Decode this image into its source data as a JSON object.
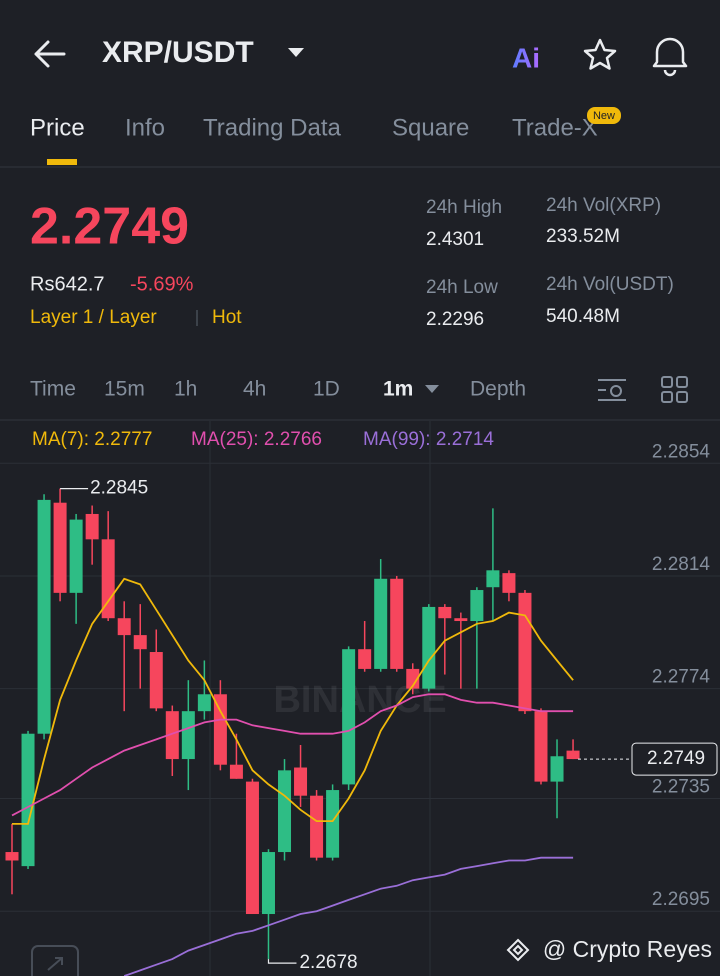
{
  "header": {
    "title": "XRP/USDT"
  },
  "tabs": [
    "Price",
    "Info",
    "Trading Data",
    "Square",
    "Trade-X"
  ],
  "tab_badge": "New",
  "ticker": {
    "price": "2.2749",
    "fiat": "Rs642.7",
    "change": "-5.69%",
    "tags": [
      "Layer 1 / Layer",
      "Hot"
    ]
  },
  "stats": [
    {
      "label": "24h High",
      "value": "2.4301"
    },
    {
      "label": "24h Vol(XRP)",
      "value": "233.52M"
    },
    {
      "label": "24h Low",
      "value": "2.2296"
    },
    {
      "label": "24h Vol(USDT)",
      "value": "540.48M"
    }
  ],
  "intervals": [
    "Time",
    "15m",
    "1h",
    "4h",
    "1D",
    "1m",
    "Depth"
  ],
  "chart": {
    "type": "candlestick",
    "watermark": "BINANCE",
    "ylim": [
      2.2672,
      2.2869
    ],
    "yticks": [
      2.2854,
      2.2814,
      2.2774,
      2.2735,
      2.2695
    ],
    "up_color": "#2ebd85",
    "down_color": "#f6465d",
    "max": 2.2845,
    "min": 2.2678,
    "current_price": 2.2749,
    "candles": [
      {
        "open": 2.2716,
        "high": 2.2726,
        "low": 2.2701,
        "close": 2.2713
      },
      {
        "open": 2.2711,
        "high": 2.2759,
        "low": 2.271,
        "close": 2.2758
      },
      {
        "open": 2.2758,
        "high": 2.2843,
        "low": 2.2756,
        "close": 2.2841
      },
      {
        "open": 2.284,
        "high": 2.2845,
        "low": 2.2805,
        "close": 2.2808
      },
      {
        "open": 2.2808,
        "high": 2.2836,
        "low": 2.2797,
        "close": 2.2834
      },
      {
        "open": 2.2836,
        "high": 2.2839,
        "low": 2.2818,
        "close": 2.2827
      },
      {
        "open": 2.2827,
        "high": 2.2837,
        "low": 2.2798,
        "close": 2.2799
      },
      {
        "open": 2.2799,
        "high": 2.2805,
        "low": 2.2766,
        "close": 2.2793
      },
      {
        "open": 2.2793,
        "high": 2.2804,
        "low": 2.2774,
        "close": 2.2788
      },
      {
        "open": 2.2787,
        "high": 2.2795,
        "low": 2.2766,
        "close": 2.2767
      },
      {
        "open": 2.2766,
        "high": 2.2768,
        "low": 2.2743,
        "close": 2.2749
      },
      {
        "open": 2.2749,
        "high": 2.2777,
        "low": 2.2738,
        "close": 2.2766
      },
      {
        "open": 2.2766,
        "high": 2.2784,
        "low": 2.2763,
        "close": 2.2772
      },
      {
        "open": 2.2772,
        "high": 2.2777,
        "low": 2.2745,
        "close": 2.2747
      },
      {
        "open": 2.2747,
        "high": 2.2758,
        "low": 2.2742,
        "close": 2.2742
      },
      {
        "open": 2.2741,
        "high": 2.2742,
        "low": 2.2694,
        "close": 2.2694
      },
      {
        "open": 2.2694,
        "high": 2.2717,
        "low": 2.2678,
        "close": 2.2716
      },
      {
        "open": 2.2716,
        "high": 2.2749,
        "low": 2.2713,
        "close": 2.2745
      },
      {
        "open": 2.2746,
        "high": 2.2754,
        "low": 2.2732,
        "close": 2.2736
      },
      {
        "open": 2.2736,
        "high": 2.2738,
        "low": 2.2713,
        "close": 2.2714
      },
      {
        "open": 2.2714,
        "high": 2.274,
        "low": 2.2713,
        "close": 2.2738
      },
      {
        "open": 2.274,
        "high": 2.2789,
        "low": 2.2738,
        "close": 2.2788
      },
      {
        "open": 2.2788,
        "high": 2.2798,
        "low": 2.278,
        "close": 2.2781
      },
      {
        "open": 2.2781,
        "high": 2.282,
        "low": 2.278,
        "close": 2.2813
      },
      {
        "open": 2.2813,
        "high": 2.2814,
        "low": 2.278,
        "close": 2.2781
      },
      {
        "open": 2.2781,
        "high": 2.2783,
        "low": 2.2772,
        "close": 2.2774
      },
      {
        "open": 2.2774,
        "high": 2.2804,
        "low": 2.2773,
        "close": 2.2803
      },
      {
        "open": 2.2803,
        "high": 2.2804,
        "low": 2.2779,
        "close": 2.2799
      },
      {
        "open": 2.2799,
        "high": 2.2801,
        "low": 2.2774,
        "close": 2.2798
      },
      {
        "open": 2.2798,
        "high": 2.281,
        "low": 2.2774,
        "close": 2.2809
      },
      {
        "open": 2.281,
        "high": 2.2838,
        "low": 2.2798,
        "close": 2.2816
      },
      {
        "open": 2.2815,
        "high": 2.2816,
        "low": 2.2805,
        "close": 2.2808
      },
      {
        "open": 2.2808,
        "high": 2.2809,
        "low": 2.2765,
        "close": 2.2766
      },
      {
        "open": 2.2766,
        "high": 2.2767,
        "low": 2.274,
        "close": 2.2741
      },
      {
        "open": 2.2741,
        "high": 2.2756,
        "low": 2.2728,
        "close": 2.275
      },
      {
        "open": 2.2752,
        "high": 2.2756,
        "low": 2.2749,
        "close": 2.2749
      }
    ],
    "series": [
      {
        "name": "MA(7): 2.2777",
        "color": "#f0b90b",
        "values": [
          2.2726,
          2.2726,
          2.2749,
          2.277,
          2.2784,
          2.2797,
          2.2805,
          2.2813,
          2.2811,
          2.2802,
          2.2793,
          2.2784,
          2.2777,
          2.2766,
          2.2756,
          2.2745,
          2.274,
          2.2736,
          2.2731,
          2.2727,
          2.2727,
          2.2735,
          2.2745,
          2.2759,
          2.2768,
          2.2775,
          2.2784,
          2.2791,
          2.2794,
          2.2797,
          2.2798,
          2.2801,
          2.28,
          2.2791,
          2.2784,
          2.2777
        ]
      },
      {
        "name": "MA(25): 2.2766",
        "color": "#e14fae",
        "values": [
          2.2729,
          2.2732,
          2.2735,
          2.2738,
          2.2742,
          2.2746,
          2.2749,
          2.2752,
          2.2754,
          2.2756,
          2.2758,
          2.276,
          2.2762,
          2.2763,
          2.2763,
          2.2761,
          2.276,
          2.2759,
          2.2758,
          2.2758,
          2.2758,
          2.2759,
          2.2762,
          2.2766,
          2.2768,
          2.2771,
          2.2772,
          2.2772,
          2.277,
          2.2769,
          2.2769,
          2.2768,
          2.2767,
          2.2766,
          2.2766,
          2.2766
        ]
      },
      {
        "name": "MA(99): 2.2714",
        "color": "#9a6fd8",
        "values": [
          null,
          null,
          null,
          null,
          null,
          null,
          null,
          2.2672,
          2.2674,
          2.2676,
          2.2678,
          2.2681,
          2.2683,
          2.2685,
          2.2687,
          2.2688,
          2.269,
          2.2692,
          2.2694,
          2.2695,
          2.2697,
          2.2699,
          2.2701,
          2.2703,
          2.2704,
          2.2706,
          2.2707,
          2.2708,
          2.271,
          2.2711,
          2.2712,
          2.2713,
          2.2713,
          2.2714,
          2.2714,
          2.2714
        ]
      }
    ]
  },
  "footer": "@ Crypto Reyes"
}
